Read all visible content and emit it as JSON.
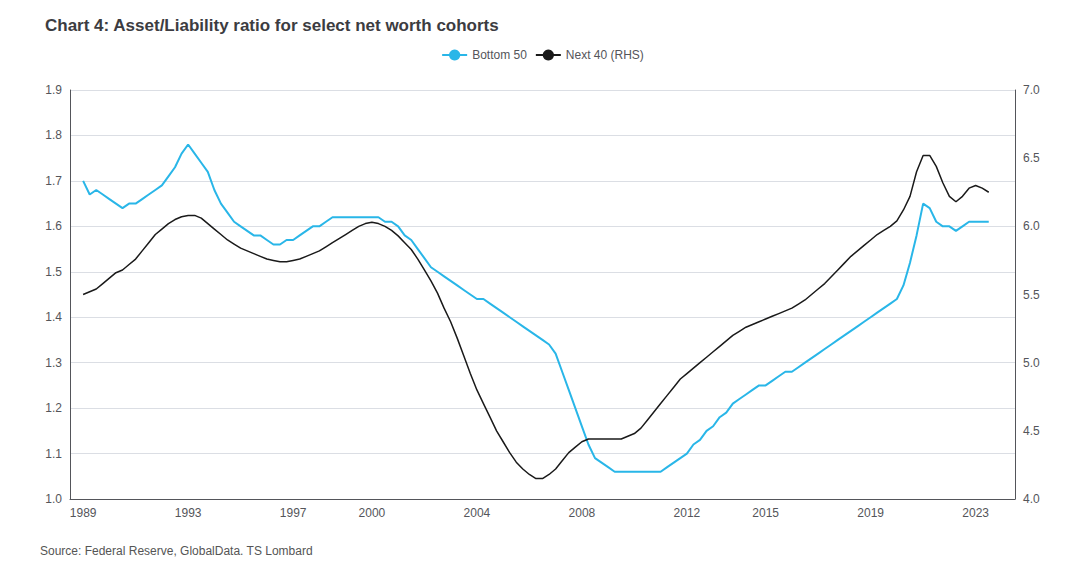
{
  "chart_data": {
    "type": "line",
    "title": "Chart 4: Asset/Liability ratio for select net worth cohorts",
    "annotations": [
      "Source: Federal Reserve, GlobalData. TS Lombard"
    ],
    "legend": "top",
    "grid": true,
    "xlim": [
      1988.5,
      2024.5
    ],
    "xticks": [
      1989,
      1993,
      1997,
      2000,
      2004,
      2008,
      2012,
      2015,
      2019,
      2023
    ],
    "ylim": [
      1.0,
      1.9
    ],
    "yticks": [
      {
        "value": 1.0,
        "label": "1.0"
      },
      1.1,
      1.2,
      1.3,
      1.4,
      1.5,
      1.6,
      1.7,
      1.8,
      1.9
    ],
    "y2lim": [
      4.0,
      7.0
    ],
    "y2ticks": [
      {
        "value": 4.0,
        "label": "4.0"
      },
      4.5,
      {
        "value": 5.0,
        "label": "5.0"
      },
      5.5,
      {
        "value": 6.0,
        "label": "6.0"
      },
      6.5,
      {
        "value": 7.0,
        "label": "7.0"
      }
    ],
    "x": [
      1989.0,
      1989.25,
      1989.5,
      1989.75,
      1990.0,
      1990.25,
      1990.5,
      1990.75,
      1991.0,
      1991.25,
      1991.5,
      1991.75,
      1992.0,
      1992.25,
      1992.5,
      1992.75,
      1993.0,
      1993.25,
      1993.5,
      1993.75,
      1994.0,
      1994.25,
      1994.5,
      1994.75,
      1995.0,
      1995.25,
      1995.5,
      1995.75,
      1996.0,
      1996.25,
      1996.5,
      1996.75,
      1997.0,
      1997.25,
      1997.5,
      1997.75,
      1998.0,
      1998.25,
      1998.5,
      1998.75,
      1999.0,
      1999.25,
      1999.5,
      1999.75,
      2000.0,
      2000.25,
      2000.5,
      2000.75,
      2001.0,
      2001.25,
      2001.5,
      2001.75,
      2002.0,
      2002.25,
      2002.5,
      2002.75,
      2003.0,
      2003.25,
      2003.5,
      2003.75,
      2004.0,
      2004.25,
      2004.5,
      2004.75,
      2005.0,
      2005.25,
      2005.5,
      2005.75,
      2006.0,
      2006.25,
      2006.5,
      2006.75,
      2007.0,
      2007.25,
      2007.5,
      2007.75,
      2008.0,
      2008.25,
      2008.5,
      2008.75,
      2009.0,
      2009.25,
      2009.5,
      2009.75,
      2010.0,
      2010.25,
      2010.5,
      2010.75,
      2011.0,
      2011.25,
      2011.5,
      2011.75,
      2012.0,
      2012.25,
      2012.5,
      2012.75,
      2013.0,
      2013.25,
      2013.5,
      2013.75,
      2014.0,
      2014.25,
      2014.5,
      2014.75,
      2015.0,
      2015.25,
      2015.5,
      2015.75,
      2016.0,
      2016.25,
      2016.5,
      2016.75,
      2017.0,
      2017.25,
      2017.5,
      2017.75,
      2018.0,
      2018.25,
      2018.5,
      2018.75,
      2019.0,
      2019.25,
      2019.5,
      2019.75,
      2020.0,
      2020.25,
      2020.5,
      2020.75,
      2021.0,
      2021.25,
      2021.5,
      2021.75,
      2022.0,
      2022.25,
      2022.5,
      2022.75,
      2023.0,
      2023.25,
      2023.5
    ],
    "series": [
      {
        "name": "Bottom 50",
        "color": "#29b6e8",
        "values": [
          1.7,
          1.67,
          1.68,
          1.67,
          1.66,
          1.65,
          1.64,
          1.65,
          1.65,
          1.66,
          1.67,
          1.68,
          1.69,
          1.71,
          1.73,
          1.76,
          1.78,
          1.76,
          1.74,
          1.72,
          1.68,
          1.65,
          1.63,
          1.61,
          1.6,
          1.59,
          1.58,
          1.58,
          1.57,
          1.56,
          1.56,
          1.57,
          1.57,
          1.58,
          1.59,
          1.6,
          1.6,
          1.61,
          1.62,
          1.62,
          1.62,
          1.62,
          1.62,
          1.62,
          1.62,
          1.62,
          1.61,
          1.61,
          1.6,
          1.58,
          1.57,
          1.55,
          1.53,
          1.51,
          1.5,
          1.49,
          1.48,
          1.47,
          1.46,
          1.45,
          1.44,
          1.44,
          1.43,
          1.42,
          1.41,
          1.4,
          1.39,
          1.38,
          1.37,
          1.36,
          1.35,
          1.34,
          1.32,
          1.28,
          1.24,
          1.2,
          1.16,
          1.12,
          1.09,
          1.08,
          1.07,
          1.06,
          1.06,
          1.06,
          1.06,
          1.06,
          1.06,
          1.06,
          1.06,
          1.07,
          1.08,
          1.09,
          1.1,
          1.12,
          1.13,
          1.15,
          1.16,
          1.18,
          1.19,
          1.21,
          1.22,
          1.23,
          1.24,
          1.25,
          1.25,
          1.26,
          1.27,
          1.28,
          1.28,
          1.29,
          1.3,
          1.31,
          1.32,
          1.33,
          1.34,
          1.35,
          1.36,
          1.37,
          1.38,
          1.39,
          1.4,
          1.41,
          1.42,
          1.43,
          1.44,
          1.47,
          1.52,
          1.58,
          1.65,
          1.64,
          1.61,
          1.6,
          1.6,
          1.59,
          1.6,
          1.61,
          1.61,
          1.61,
          1.61
        ]
      },
      {
        "name": "Next 40 (RHS)",
        "color": "#1a1a1a",
        "axis": "y2",
        "values": [
          5.5,
          5.52,
          5.54,
          5.58,
          5.62,
          5.66,
          5.68,
          5.72,
          5.76,
          5.82,
          5.88,
          5.94,
          5.98,
          6.02,
          6.05,
          6.07,
          6.08,
          6.08,
          6.06,
          6.02,
          5.98,
          5.94,
          5.9,
          5.87,
          5.84,
          5.82,
          5.8,
          5.78,
          5.76,
          5.75,
          5.74,
          5.74,
          5.75,
          5.76,
          5.78,
          5.8,
          5.82,
          5.85,
          5.88,
          5.91,
          5.94,
          5.97,
          6.0,
          6.02,
          6.03,
          6.02,
          6.0,
          5.97,
          5.93,
          5.88,
          5.83,
          5.76,
          5.68,
          5.6,
          5.51,
          5.4,
          5.3,
          5.18,
          5.05,
          4.92,
          4.8,
          4.7,
          4.6,
          4.5,
          4.42,
          4.34,
          4.27,
          4.22,
          4.18,
          4.15,
          4.15,
          4.18,
          4.22,
          4.28,
          4.34,
          4.38,
          4.42,
          4.44,
          4.44,
          4.44,
          4.44,
          4.44,
          4.44,
          4.46,
          4.48,
          4.52,
          4.58,
          4.64,
          4.7,
          4.76,
          4.82,
          4.88,
          4.92,
          4.96,
          5.0,
          5.04,
          5.08,
          5.12,
          5.16,
          5.2,
          5.23,
          5.26,
          5.28,
          5.3,
          5.32,
          5.34,
          5.36,
          5.38,
          5.4,
          5.43,
          5.46,
          5.5,
          5.54,
          5.58,
          5.63,
          5.68,
          5.73,
          5.78,
          5.82,
          5.86,
          5.9,
          5.94,
          5.97,
          6.0,
          6.04,
          6.12,
          6.22,
          6.4,
          6.52,
          6.52,
          6.44,
          6.32,
          6.22,
          6.18,
          6.22,
          6.28,
          6.3,
          6.28,
          6.25
        ]
      }
    ]
  }
}
